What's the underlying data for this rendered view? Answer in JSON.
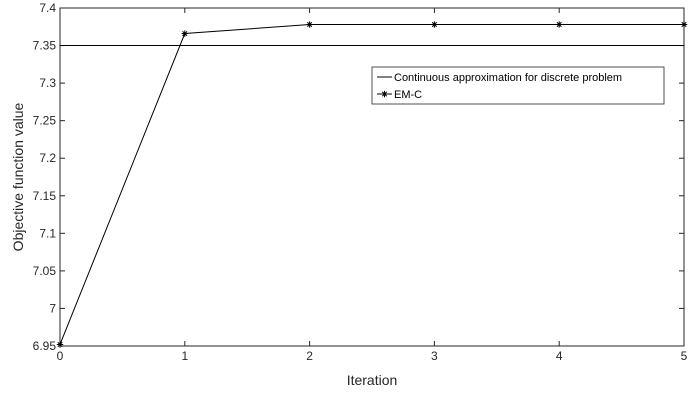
{
  "chart_data": {
    "type": "line",
    "title": "",
    "xlabel": "Iteration",
    "ylabel": "Objective function value",
    "xlim": [
      0,
      5
    ],
    "ylim": [
      6.95,
      7.4
    ],
    "xticks": [
      "0",
      "1",
      "2",
      "3",
      "4",
      "5"
    ],
    "yticks": [
      "6.95",
      "7",
      "7.05",
      "7.1",
      "7.15",
      "7.2",
      "7.25",
      "7.3",
      "7.35",
      "7.4"
    ],
    "grid": false,
    "legend_position": "upper-right-inside",
    "series": [
      {
        "name": "Continuous approximation for discrete problem",
        "x": [
          0,
          5
        ],
        "values": [
          7.35,
          7.35
        ],
        "marker": "none",
        "color": "#000000"
      },
      {
        "name": "EM-C",
        "x": [
          0,
          1,
          2,
          3,
          4,
          5
        ],
        "values": [
          6.952,
          7.366,
          7.378,
          7.378,
          7.378,
          7.378
        ],
        "marker": "star",
        "color": "#000000"
      }
    ]
  }
}
